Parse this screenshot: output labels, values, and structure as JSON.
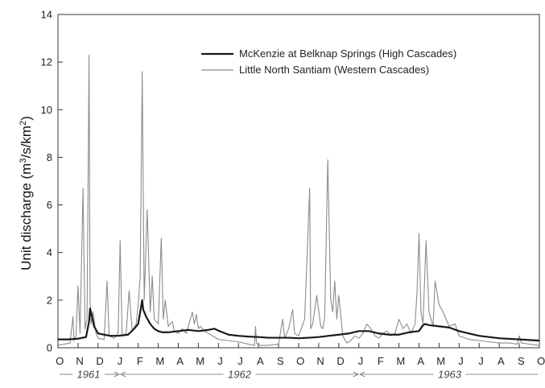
{
  "chart_data": {
    "type": "line",
    "title": "",
    "ylabel_main": "Unit discharge (m",
    "ylabel_sup1": "3",
    "ylabel_mid": "/s/km",
    "ylabel_sup2": "2",
    "ylabel_end": ")",
    "xlabel": "",
    "ylim": [
      0,
      14
    ],
    "yticks": [
      "0",
      "2",
      "4",
      "6",
      "8",
      "10",
      "12",
      "14"
    ],
    "months": [
      "O",
      "N",
      "D",
      "J",
      "F",
      "M",
      "A",
      "M",
      "J",
      "J",
      "A",
      "S",
      "O",
      "N",
      "D",
      "J",
      "F",
      "M",
      "A",
      "M",
      "J",
      "J",
      "A",
      "S",
      "O"
    ],
    "years": [
      "1961",
      "1962",
      "1963"
    ],
    "legend_position": "top-right",
    "grid": false,
    "series": [
      {
        "name": "McKenzie at Belknap Springs (High Cascades)",
        "color": "#1a1a1a",
        "x": [
          0,
          0.5,
          1,
          1.4,
          1.55,
          1.6,
          1.7,
          1.8,
          2.0,
          2.3,
          2.6,
          3.0,
          3.5,
          3.8,
          4.0,
          4.1,
          4.2,
          4.25,
          4.4,
          4.6,
          4.8,
          5.0,
          5.2,
          5.5,
          6.0,
          6.5,
          7.0,
          7.5,
          7.8,
          8.0,
          8.5,
          9.0,
          9.5,
          10.0,
          10.5,
          11.0,
          11.5,
          12.0,
          12.5,
          13.0,
          13.5,
          14.0,
          14.5,
          15.0,
          15.5,
          16.0,
          16.5,
          17.0,
          17.5,
          18.0,
          18.2,
          18.3,
          18.5,
          19.0,
          19.5,
          20.0,
          20.5,
          21.0,
          21.5,
          22.0,
          23.0,
          24.0
        ],
        "values": [
          0.35,
          0.35,
          0.38,
          0.45,
          1.1,
          1.65,
          1.3,
          0.9,
          0.6,
          0.55,
          0.5,
          0.5,
          0.55,
          0.8,
          1.0,
          1.5,
          2.0,
          1.6,
          1.3,
          1.0,
          0.8,
          0.7,
          0.65,
          0.65,
          0.7,
          0.75,
          0.7,
          0.75,
          0.8,
          0.72,
          0.55,
          0.5,
          0.47,
          0.45,
          0.42,
          0.42,
          0.42,
          0.4,
          0.42,
          0.45,
          0.5,
          0.55,
          0.6,
          0.7,
          0.7,
          0.6,
          0.55,
          0.55,
          0.65,
          0.7,
          0.95,
          1.0,
          0.95,
          0.9,
          0.85,
          0.7,
          0.6,
          0.5,
          0.45,
          0.4,
          0.35,
          0.3
        ]
      },
      {
        "name": "Little North Santiam (Western Cascades)",
        "color": "#8c8c8c",
        "x": [
          0,
          0.3,
          0.6,
          0.75,
          0.8,
          0.9,
          1.0,
          1.1,
          1.25,
          1.35,
          1.45,
          1.55,
          1.6,
          1.65,
          1.75,
          1.9,
          2.0,
          2.3,
          2.45,
          2.55,
          2.8,
          3.0,
          3.1,
          3.2,
          3.4,
          3.55,
          3.7,
          3.9,
          4.0,
          4.1,
          4.2,
          4.3,
          4.45,
          4.6,
          4.7,
          4.8,
          5.0,
          5.15,
          5.25,
          5.35,
          5.5,
          5.7,
          5.8,
          6.0,
          6.2,
          6.4,
          6.7,
          6.8,
          6.9,
          7.0,
          7.1,
          7.3,
          7.5,
          8.0,
          8.5,
          9.0,
          9.5,
          9.8,
          9.85,
          9.9,
          10.0,
          10.5,
          11.0,
          11.2,
          11.3,
          11.5,
          11.7,
          11.8,
          12.0,
          12.3,
          12.55,
          12.6,
          12.7,
          12.9,
          13.1,
          13.2,
          13.3,
          13.45,
          13.6,
          13.7,
          13.8,
          13.9,
          14.0,
          14.2,
          14.4,
          14.6,
          14.8,
          15.0,
          15.2,
          15.4,
          15.6,
          15.8,
          16.0,
          16.2,
          16.4,
          16.6,
          16.8,
          17.0,
          17.2,
          17.4,
          17.6,
          17.8,
          17.9,
          18.0,
          18.1,
          18.2,
          18.35,
          18.5,
          18.7,
          18.8,
          19.0,
          19.2,
          19.5,
          19.8,
          20.0,
          20.5,
          21.0,
          21.5,
          22.0,
          22.5,
          22.9,
          23.0,
          23.1,
          23.5,
          24.0
        ],
        "values": [
          0.1,
          0.15,
          0.2,
          1.3,
          0.3,
          0.5,
          2.6,
          0.6,
          6.7,
          0.8,
          1.2,
          12.3,
          2.0,
          1.0,
          1.5,
          0.6,
          0.4,
          0.35,
          2.8,
          0.5,
          0.4,
          0.6,
          4.5,
          0.5,
          0.6,
          2.4,
          0.7,
          1.0,
          1.8,
          3.0,
          11.6,
          2.0,
          5.8,
          1.5,
          3.0,
          1.2,
          1.0,
          4.6,
          1.2,
          2.0,
          0.9,
          1.1,
          0.7,
          0.6,
          0.8,
          0.6,
          1.5,
          1.0,
          1.4,
          0.8,
          0.9,
          0.7,
          0.6,
          0.35,
          0.3,
          0.25,
          0.15,
          0.1,
          0.9,
          0.2,
          0.1,
          0.1,
          0.15,
          1.2,
          0.4,
          0.8,
          1.6,
          0.6,
          0.5,
          1.2,
          6.7,
          0.8,
          1.0,
          2.2,
          0.9,
          0.8,
          1.3,
          7.9,
          2.0,
          1.5,
          2.8,
          1.2,
          2.2,
          0.5,
          0.2,
          0.3,
          0.5,
          0.4,
          0.6,
          1.0,
          0.8,
          0.5,
          0.4,
          0.6,
          0.7,
          0.5,
          0.6,
          1.2,
          0.8,
          1.0,
          0.6,
          1.0,
          2.3,
          4.8,
          1.5,
          1.0,
          4.5,
          1.5,
          0.9,
          2.8,
          1.8,
          1.5,
          0.9,
          1.0,
          0.5,
          0.35,
          0.3,
          0.25,
          0.2,
          0.2,
          0.15,
          0.5,
          0.2,
          0.15,
          0.1
        ]
      }
    ]
  }
}
